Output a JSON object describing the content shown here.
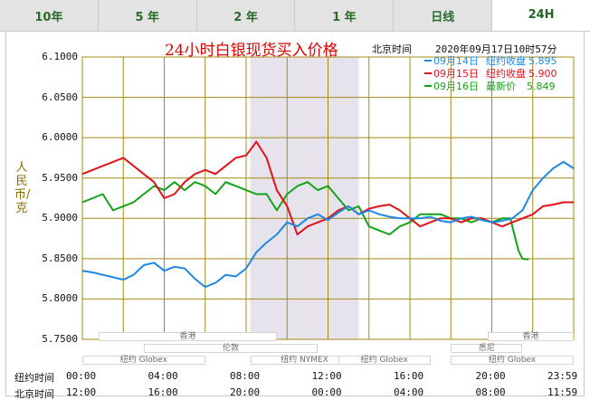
{
  "tabs": [
    {
      "label": "10年",
      "active": false
    },
    {
      "label": "5 年",
      "active": false
    },
    {
      "label": "2 年",
      "active": false
    },
    {
      "label": "1 年",
      "active": false
    },
    {
      "label": "日线",
      "active": false
    },
    {
      "label": "24H",
      "active": true
    }
  ],
  "header": {
    "title": "24小时白银现货买入价格",
    "clock_label": "北京时间",
    "clock_value": "2020年09月17日10时57分"
  },
  "yaxis_label": "人民币/克",
  "legend": [
    {
      "date": "09月14日",
      "type": "纽约收盘",
      "value": "5.895",
      "color": "#1e88e5"
    },
    {
      "date": "09月15日",
      "type": "纽约收盘",
      "value": "5.900",
      "color": "#e0121a"
    },
    {
      "date": "09月16日",
      "type": "最新价",
      "value": "5.849",
      "color": "#13a319"
    }
  ],
  "markets": {
    "row1": [
      {
        "label": "香港",
        "from": 0.8,
        "to": 9.5
      },
      {
        "label": "香港",
        "from": 19.8,
        "to": 23.99
      }
    ],
    "row2": [
      {
        "label": "伦敦",
        "from": 3.0,
        "to": 11.5
      },
      {
        "label": "悉尼",
        "from": 18.0,
        "to": 21.5
      }
    ],
    "row3": [
      {
        "label": "纽约 Globex",
        "from": 0.0,
        "to": 6.0
      },
      {
        "label": "纽约 NYMEX",
        "from": 8.2,
        "to": 13.5
      },
      {
        "label": "纽约 Globex",
        "from": 12.5,
        "to": 17.0
      },
      {
        "label": "纽约 Globex",
        "from": 18.0,
        "to": 23.99
      }
    ]
  },
  "time_axis": {
    "ny_label": "纽约时间",
    "bj_label": "北京时间",
    "ny_ticks": [
      "00:00",
      "04:00",
      "08:00",
      "12:00",
      "16:00",
      "20:00",
      "23:59"
    ],
    "bj_ticks": [
      "12:00",
      "16:00",
      "20:00",
      "00:00",
      "04:00",
      "08:00",
      "11:59"
    ]
  },
  "colors": {
    "grid": "#a48a14",
    "shade": "#e7e3ec"
  },
  "chart_data": {
    "type": "line",
    "title": "24小时白银现货买入价格",
    "ylabel": "人民币/克",
    "xlabel": "",
    "x_unit": "hours since 00:00 New York time",
    "ylim": [
      5.75,
      6.1
    ],
    "y_ticks": [
      "6.1000",
      "6.0500",
      "6.0000",
      "5.9500",
      "5.9000",
      "5.8500",
      "5.8000",
      "5.7500"
    ],
    "shaded_interval": [
      8.2,
      13.5
    ],
    "series": [
      {
        "name": "09月14日",
        "color": "#1e88e5",
        "x": [
          0,
          0.5,
          1.0,
          1.5,
          2.0,
          2.5,
          3.0,
          3.5,
          4.0,
          4.5,
          5.0,
          5.5,
          6.0,
          6.5,
          7.0,
          7.5,
          8.0,
          8.5,
          9.0,
          9.5,
          10.0,
          10.5,
          11.0,
          11.5,
          12.0,
          12.5,
          13.0,
          13.5,
          14.0,
          14.5,
          15.0,
          15.5,
          16.0,
          16.5,
          17.0,
          17.5,
          18.0,
          18.5,
          19.0,
          19.5,
          20.0,
          20.5,
          21.0,
          21.5,
          22.0,
          22.5,
          23.0,
          23.5,
          23.99
        ],
        "y": [
          5.835,
          5.833,
          5.83,
          5.827,
          5.824,
          5.83,
          5.842,
          5.845,
          5.835,
          5.84,
          5.838,
          5.825,
          5.815,
          5.82,
          5.83,
          5.828,
          5.838,
          5.858,
          5.87,
          5.88,
          5.895,
          5.89,
          5.9,
          5.905,
          5.898,
          5.907,
          5.915,
          5.905,
          5.91,
          5.905,
          5.902,
          5.9,
          5.9,
          5.9,
          5.902,
          5.897,
          5.895,
          5.9,
          5.902,
          5.898,
          5.895,
          5.897,
          5.9,
          5.91,
          5.935,
          5.95,
          5.962,
          5.97,
          5.962
        ]
      },
      {
        "name": "09月15日",
        "color": "#e0121a",
        "x": [
          0,
          0.5,
          1.0,
          1.5,
          2.0,
          2.5,
          3.0,
          3.5,
          4.0,
          4.5,
          5.0,
          5.5,
          6.0,
          6.5,
          7.0,
          7.5,
          8.0,
          8.5,
          9.0,
          9.5,
          10.0,
          10.5,
          11.0,
          11.5,
          12.0,
          12.5,
          13.0,
          13.5,
          14.0,
          14.5,
          15.0,
          15.5,
          16.0,
          16.5,
          17.0,
          17.5,
          18.0,
          18.5,
          19.0,
          19.5,
          20.0,
          20.5,
          21.0,
          21.5,
          22.0,
          22.5,
          23.0,
          23.5,
          23.99
        ],
        "y": [
          5.955,
          5.96,
          5.965,
          5.97,
          5.975,
          5.965,
          5.955,
          5.945,
          5.925,
          5.93,
          5.945,
          5.955,
          5.96,
          5.955,
          5.965,
          5.975,
          5.978,
          5.995,
          5.975,
          5.935,
          5.915,
          5.88,
          5.89,
          5.895,
          5.9,
          5.91,
          5.915,
          5.905,
          5.912,
          5.915,
          5.917,
          5.91,
          5.9,
          5.89,
          5.895,
          5.9,
          5.9,
          5.895,
          5.9,
          5.9,
          5.895,
          5.89,
          5.895,
          5.9,
          5.905,
          5.915,
          5.917,
          5.92,
          5.92
        ]
      },
      {
        "name": "09月16日",
        "color": "#13a319",
        "x": [
          0,
          0.5,
          1.0,
          1.5,
          2.0,
          2.5,
          3.0,
          3.5,
          4.0,
          4.5,
          5.0,
          5.5,
          6.0,
          6.5,
          7.0,
          7.5,
          8.0,
          8.5,
          9.0,
          9.5,
          10.0,
          10.5,
          11.0,
          11.5,
          12.0,
          12.5,
          13.0,
          13.5,
          14.0,
          14.5,
          15.0,
          15.5,
          16.0,
          16.5,
          17.0,
          17.5,
          18.0,
          18.5,
          19.0,
          19.5,
          20.0,
          20.5,
          20.9,
          21.1,
          21.3,
          21.5,
          21.8
        ],
        "y": [
          5.92,
          5.925,
          5.93,
          5.91,
          5.915,
          5.92,
          5.93,
          5.94,
          5.935,
          5.945,
          5.935,
          5.945,
          5.94,
          5.93,
          5.945,
          5.94,
          5.935,
          5.93,
          5.93,
          5.91,
          5.93,
          5.94,
          5.945,
          5.935,
          5.94,
          5.925,
          5.91,
          5.915,
          5.89,
          5.885,
          5.88,
          5.89,
          5.895,
          5.905,
          5.905,
          5.905,
          5.9,
          5.9,
          5.895,
          5.9,
          5.895,
          5.9,
          5.9,
          5.88,
          5.86,
          5.85,
          5.849
        ]
      }
    ]
  }
}
